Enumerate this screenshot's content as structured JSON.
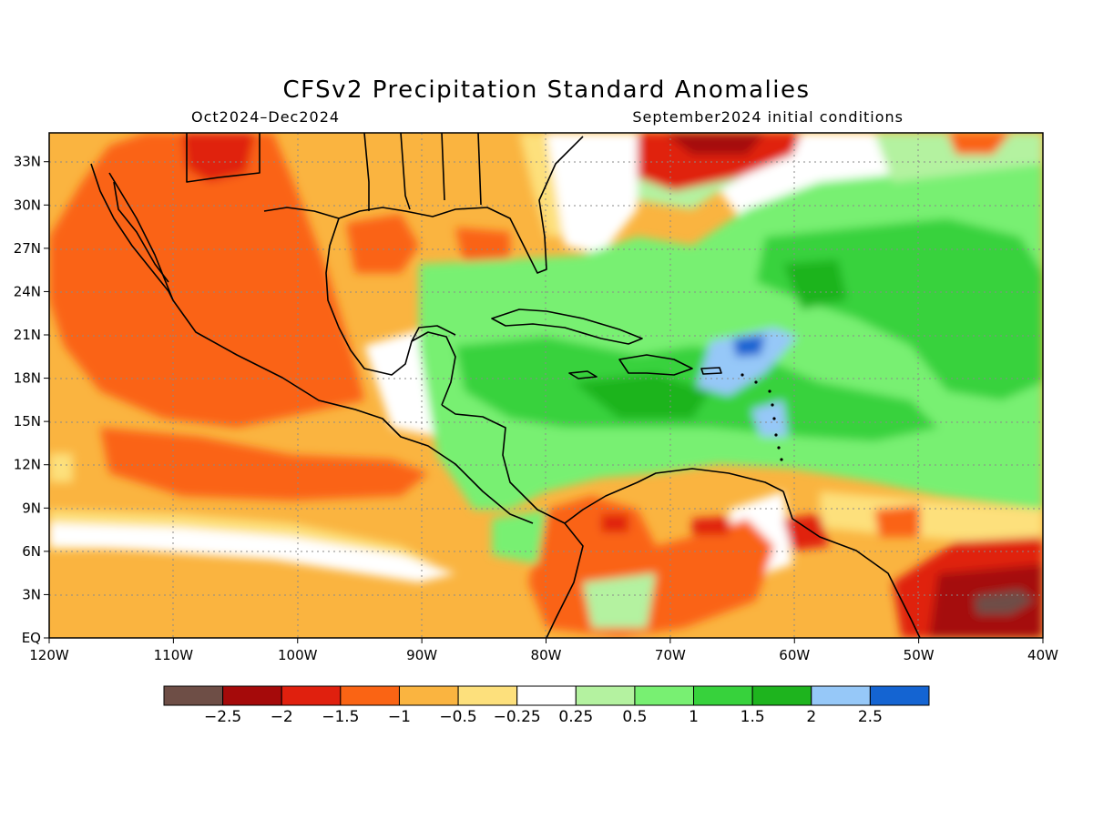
{
  "title": "CFSv2 Precipitation Standard Anomalies",
  "subtitle_left": "Oct2024–Dec2024",
  "subtitle_right": "September2024 initial conditions",
  "lon_ticks": [
    {
      "lon": -120,
      "label": "120W"
    },
    {
      "lon": -110,
      "label": "110W"
    },
    {
      "lon": -100,
      "label": "100W"
    },
    {
      "lon": -90,
      "label": "90W"
    },
    {
      "lon": -80,
      "label": "80W"
    },
    {
      "lon": -70,
      "label": "70W"
    },
    {
      "lon": -60,
      "label": "60W"
    },
    {
      "lon": -50,
      "label": "50W"
    },
    {
      "lon": -40,
      "label": "40W"
    }
  ],
  "lat_ticks": [
    {
      "lat": 0,
      "label": "EQ"
    },
    {
      "lat": 3,
      "label": "3N"
    },
    {
      "lat": 6,
      "label": "6N"
    },
    {
      "lat": 9,
      "label": "9N"
    },
    {
      "lat": 12,
      "label": "12N"
    },
    {
      "lat": 15,
      "label": "15N"
    },
    {
      "lat": 18,
      "label": "18N"
    },
    {
      "lat": 21,
      "label": "21N"
    },
    {
      "lat": 24,
      "label": "24N"
    },
    {
      "lat": 27,
      "label": "27N"
    },
    {
      "lat": 30,
      "label": "30N"
    },
    {
      "lat": 33,
      "label": "33N"
    }
  ],
  "colorbar": {
    "colors": [
      "#6e4e46",
      "#a50a0a",
      "#e0200e",
      "#fa6414",
      "#fab440",
      "#fde07c",
      "#ffffff",
      "#b4f2a0",
      "#78f072",
      "#37d23c",
      "#1eb41e",
      "#96c8f8",
      "#1464d2"
    ],
    "labels": [
      "−2.5",
      "−2",
      "−1.5",
      "−1",
      "−0.5",
      "−0.25",
      "0.25",
      "0.5",
      "1",
      "1.5",
      "2",
      "2.5"
    ]
  }
}
